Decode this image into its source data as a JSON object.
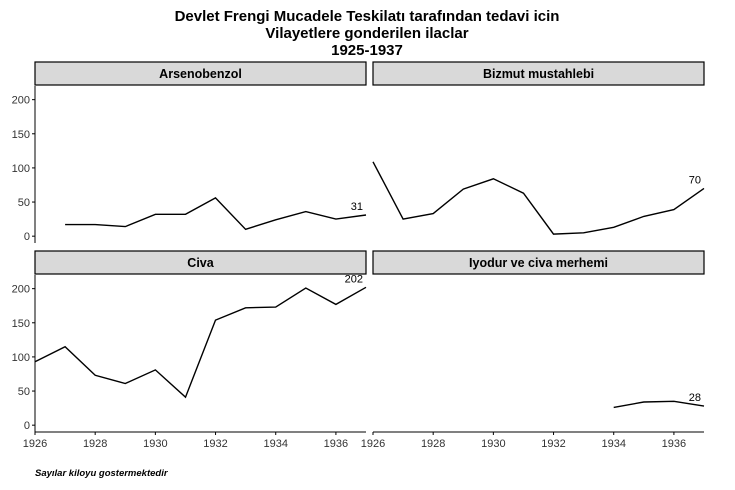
{
  "chart_data": {
    "type": "line",
    "title_lines": [
      "Devlet Frengi Mucadele Teskilatı tarafından tedavi icin",
      "Vilayetlere gonderilen ilaclar",
      "1925-1937"
    ],
    "caption": "Sayılar kiloyu gostermektedir",
    "x_ticks": [
      1926,
      1928,
      1930,
      1932,
      1934,
      1936
    ],
    "y_ticks": [
      0,
      50,
      100,
      150,
      200
    ],
    "xlim": [
      1926,
      1937
    ],
    "ylim": [
      -10,
      220
    ],
    "facets": [
      {
        "title": "Arsenobenzol",
        "points": [
          [
            1927,
            17
          ],
          [
            1928,
            17
          ],
          [
            1929,
            14
          ],
          [
            1930,
            32
          ],
          [
            1931,
            32
          ],
          [
            1932,
            56
          ],
          [
            1933,
            10
          ],
          [
            1934,
            24
          ],
          [
            1935,
            36
          ],
          [
            1936,
            25
          ],
          [
            1937,
            31
          ]
        ],
        "end_label": "31"
      },
      {
        "title": "Bizmut mustahlebi",
        "points": [
          [
            1926,
            109
          ],
          [
            1927,
            25
          ],
          [
            1928,
            33
          ],
          [
            1929,
            69
          ],
          [
            1930,
            84
          ],
          [
            1931,
            63
          ],
          [
            1932,
            3
          ],
          [
            1933,
            5
          ],
          [
            1934,
            13
          ],
          [
            1935,
            29
          ],
          [
            1936,
            39
          ],
          [
            1937,
            70
          ]
        ],
        "end_label": "70"
      },
      {
        "title": "Civa",
        "points": [
          [
            1926,
            93
          ],
          [
            1927,
            115
          ],
          [
            1928,
            73
          ],
          [
            1929,
            61
          ],
          [
            1930,
            81
          ],
          [
            1931,
            41
          ],
          [
            1932,
            154
          ],
          [
            1933,
            172
          ],
          [
            1934,
            173
          ],
          [
            1935,
            201
          ],
          [
            1936,
            177
          ],
          [
            1937,
            202
          ]
        ],
        "end_label": "202"
      },
      {
        "title": "Iyodur ve civa merhemi",
        "points": [
          [
            1934,
            26
          ],
          [
            1935,
            34
          ],
          [
            1936,
            35
          ],
          [
            1937,
            28
          ]
        ],
        "end_label": "28"
      }
    ]
  }
}
